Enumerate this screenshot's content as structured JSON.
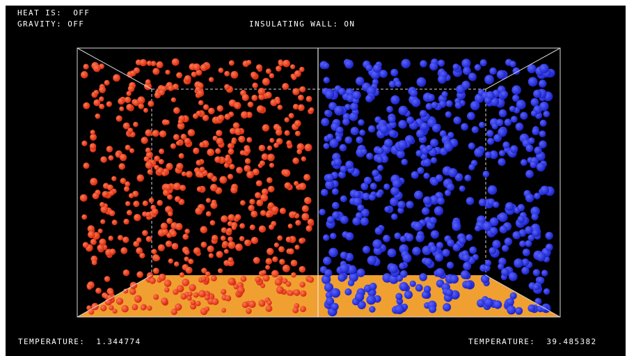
{
  "status": {
    "heat_label": "HEAT IS:",
    "heat_value": "OFF",
    "gravity_label": "GRAVITY:",
    "gravity_value": "OFF",
    "wall_label": "INSULATING WALL:",
    "wall_value": "ON"
  },
  "left_chamber": {
    "temperature_label": "TEMPERATURE:",
    "temperature_value": "1.344774",
    "particle_color": "#d62a10"
  },
  "right_chamber": {
    "temperature_label": "TEMPERATURE:",
    "temperature_value": "39.485382",
    "particle_color": "#1c23c8"
  },
  "colors": {
    "background": "#000000",
    "floor": "#f0a030",
    "wireframe": "#d8d8d8",
    "text": "#ffffff"
  }
}
